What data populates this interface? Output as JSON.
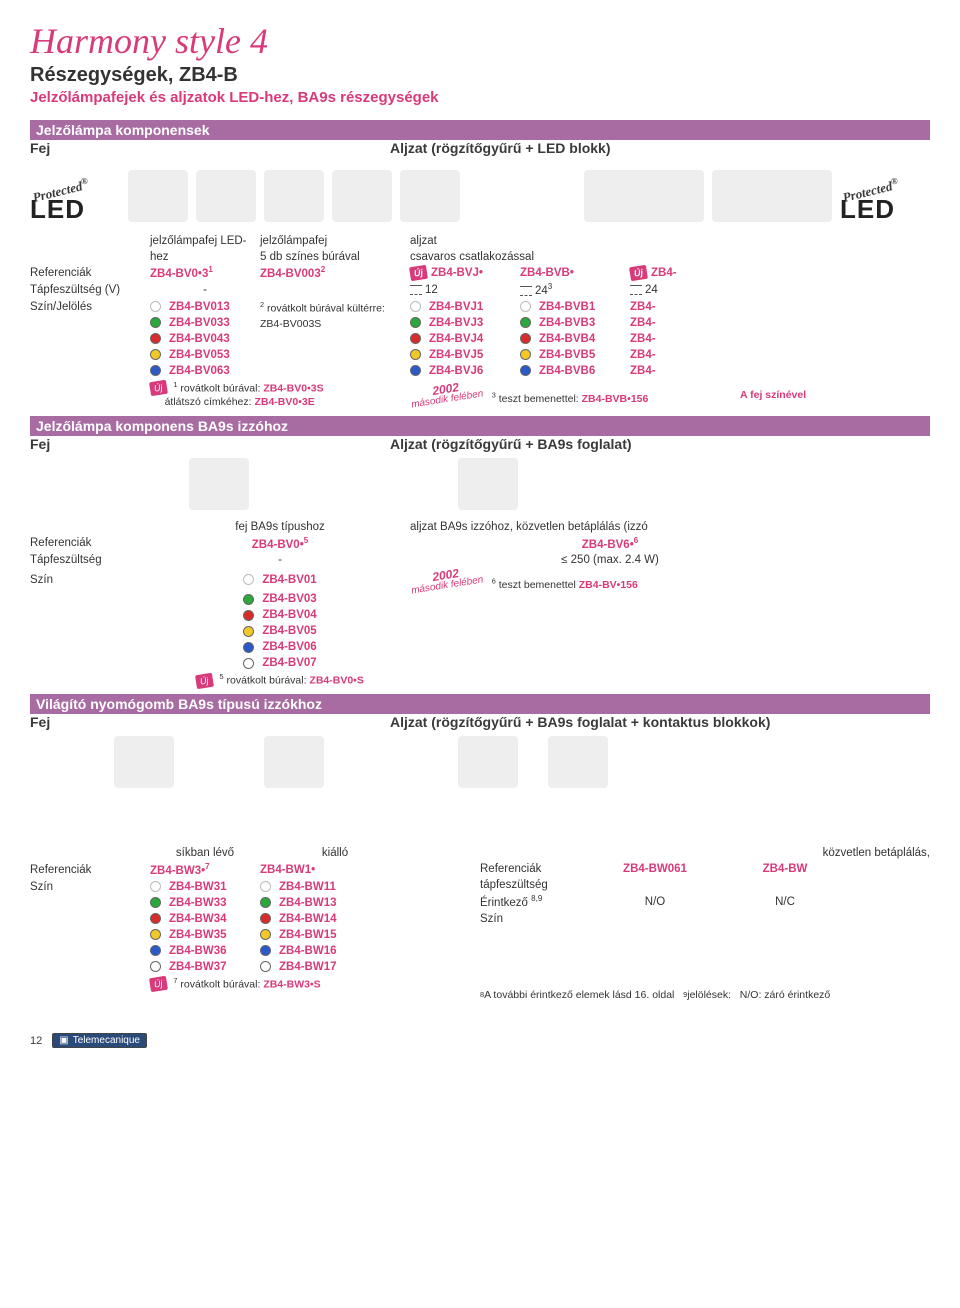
{
  "page": {
    "title": "Harmony style 4",
    "subtitle1": "Részegységek, ZB4-B",
    "subtitle2": "Jelzőlámpafejek és aljzatok LED-hez, BA9s részegységek",
    "page_number": "12",
    "brand": "Telemecanique"
  },
  "s1": {
    "bar": "Jelzőlámpa komponensek",
    "lhead": "Fej",
    "rhead": "Aljzat (rögzítőgyűrű + LED blokk)",
    "protected": "Protected",
    "led": "LED",
    "hdr": {
      "h1": "jelzőlámpafej LED-hez",
      "h2a": "jelzőlámpafej",
      "h2b": "5 db színes búrával",
      "h3a": "aljzat",
      "h3b": "csavaros csatlakozással"
    },
    "rows": {
      "ref": {
        "lbl": "Referenciák",
        "c1": "ZB4-BV0•3",
        "c1s": "1",
        "c2": "ZB4-BV003",
        "c2s": "2",
        "c3": "ZB4-BVJ•",
        "c4": "ZB4-BVB•",
        "c5": "ZB4-",
        "uj": "Új"
      },
      "volt": {
        "lbl": "Tápfeszültség (V)",
        "c1": "-",
        "c3": "12",
        "c4": "24",
        "c4s": "3",
        "c5": "24"
      },
      "color_lbl": "Szín/Jelölés",
      "note2a": "rovátkolt búrával kültérre:",
      "note2b": "ZB4-BV003S",
      "colors": [
        {
          "sw": "sw-white",
          "c1": "ZB4-BV013",
          "c3": "ZB4-BVJ1",
          "c4": "ZB4-BVB1",
          "c5": "ZB4-"
        },
        {
          "sw": "sw-green",
          "c1": "ZB4-BV033",
          "c3": "ZB4-BVJ3",
          "c4": "ZB4-BVB3",
          "c5": "ZB4-"
        },
        {
          "sw": "sw-red",
          "c1": "ZB4-BV043",
          "c3": "ZB4-BVJ4",
          "c4": "ZB4-BVB4",
          "c5": "ZB4-"
        },
        {
          "sw": "sw-yellow",
          "c1": "ZB4-BV053",
          "c3": "ZB4-BVJ5",
          "c4": "ZB4-BVB5",
          "c5": "ZB4-"
        },
        {
          "sw": "sw-blue",
          "c1": "ZB4-BV063",
          "c3": "ZB4-BVJ6",
          "c4": "ZB4-BVB6",
          "c5": "ZB4-"
        }
      ],
      "n1s": "1",
      "n1": " rovátkolt búrával: ",
      "n1r": "ZB4-BV0•3S",
      "n1b": "átlátszó címkéhez: ",
      "n1br": "ZB4-BV0•3E",
      "n3s": "3",
      "n3": " teszt bemenettel: ",
      "n3r": "ZB4-BVB•156",
      "n_right": "A fej színével",
      "badge2002a": "2002",
      "badge2002b": "második felében",
      "uj": "Új"
    },
    "bar2": "Jelzőlámpa komponens BA9s izzóhoz",
    "lhead2": "Fej",
    "rhead2": "Aljzat (rögzítőgyűrű + BA9s foglalat)"
  },
  "s2": {
    "hdr_l": "fej BA9s típushoz",
    "hdr_r": "aljzat BA9s izzóhoz, közvetlen betáplálás (izzó",
    "rows": {
      "ref": {
        "lbl": "Referenciák",
        "c1": "ZB4-BV0•",
        "c1s": "5",
        "c3": "ZB4-BV6•",
        "c3s": "6"
      },
      "volt": {
        "lbl": "Tápfeszültség",
        "c1": "-",
        "c3": "≤ 250 (max. 2.4 W)"
      },
      "color_lbl": "Szín",
      "colors": [
        {
          "sw": "sw-white",
          "c1": "ZB4-BV01"
        },
        {
          "sw": "sw-green",
          "c1": "ZB4-BV03"
        },
        {
          "sw": "sw-red",
          "c1": "ZB4-BV04"
        },
        {
          "sw": "sw-yellow",
          "c1": "ZB4-BV05"
        },
        {
          "sw": "sw-blue",
          "c1": "ZB4-BV06"
        },
        {
          "sw": "sw-clear",
          "c1": "ZB4-BV07"
        }
      ],
      "n5s": "5",
      "n5": " rovátkolt búrával: ",
      "n5r": "ZB4-BV0•S",
      "n6s": "6",
      "n6": " teszt bemenettel ",
      "n6r": "ZB4-BV•156",
      "badge2002a": "2002",
      "badge2002b": "második felében",
      "uj": "Új"
    },
    "bar3": "Világító nyomógomb BA9s típusú izzókhoz",
    "lhead3": "Fej",
    "rhead3": "Aljzat (rögzítőgyűrű + BA9s foglalat + kontaktus blokkok)"
  },
  "s3": {
    "hdr_l1": "síkban lévő",
    "hdr_l2": "kiálló",
    "hdr_r": "közvetlen betáplálás,",
    "left": {
      "ref": {
        "lbl": "Referenciák",
        "c1": "ZB4-BW3•",
        "c1s": "7",
        "c2": "ZB4-BW1•"
      },
      "color_lbl": "Szín",
      "colors": [
        {
          "sw": "sw-white",
          "c1": "ZB4-BW31",
          "c2": "ZB4-BW11"
        },
        {
          "sw": "sw-green",
          "c1": "ZB4-BW33",
          "c2": "ZB4-BW13"
        },
        {
          "sw": "sw-red",
          "c1": "ZB4-BW34",
          "c2": "ZB4-BW14"
        },
        {
          "sw": "sw-yellow",
          "c1": "ZB4-BW35",
          "c2": "ZB4-BW15"
        },
        {
          "sw": "sw-blue",
          "c1": "ZB4-BW36",
          "c2": "ZB4-BW16"
        },
        {
          "sw": "sw-clear",
          "c1": "ZB4-BW37",
          "c2": "ZB4-BW17"
        }
      ],
      "n7s": "7",
      "n7": " rovátkolt búrával: ",
      "n7r": "ZB4-BW3•S",
      "uj": "Új"
    },
    "right": {
      "ref": {
        "lbl": "Referenciák",
        "c1": "ZB4-BW061",
        "c2": "ZB4-BW"
      },
      "volt_lbl": "tápfeszültség",
      "erintk": {
        "lbl": "Érintkező",
        "sup": "8,9",
        "c1": "N/O",
        "c2": "N/C"
      },
      "szin_lbl": "Szín"
    },
    "foot8s": "8",
    "foot8": " A további érintkező elemek lásd 16. oldal",
    "foot9s": "9",
    "foot9": " jelölések:",
    "foot9r": "N/O: záró érintkező"
  }
}
